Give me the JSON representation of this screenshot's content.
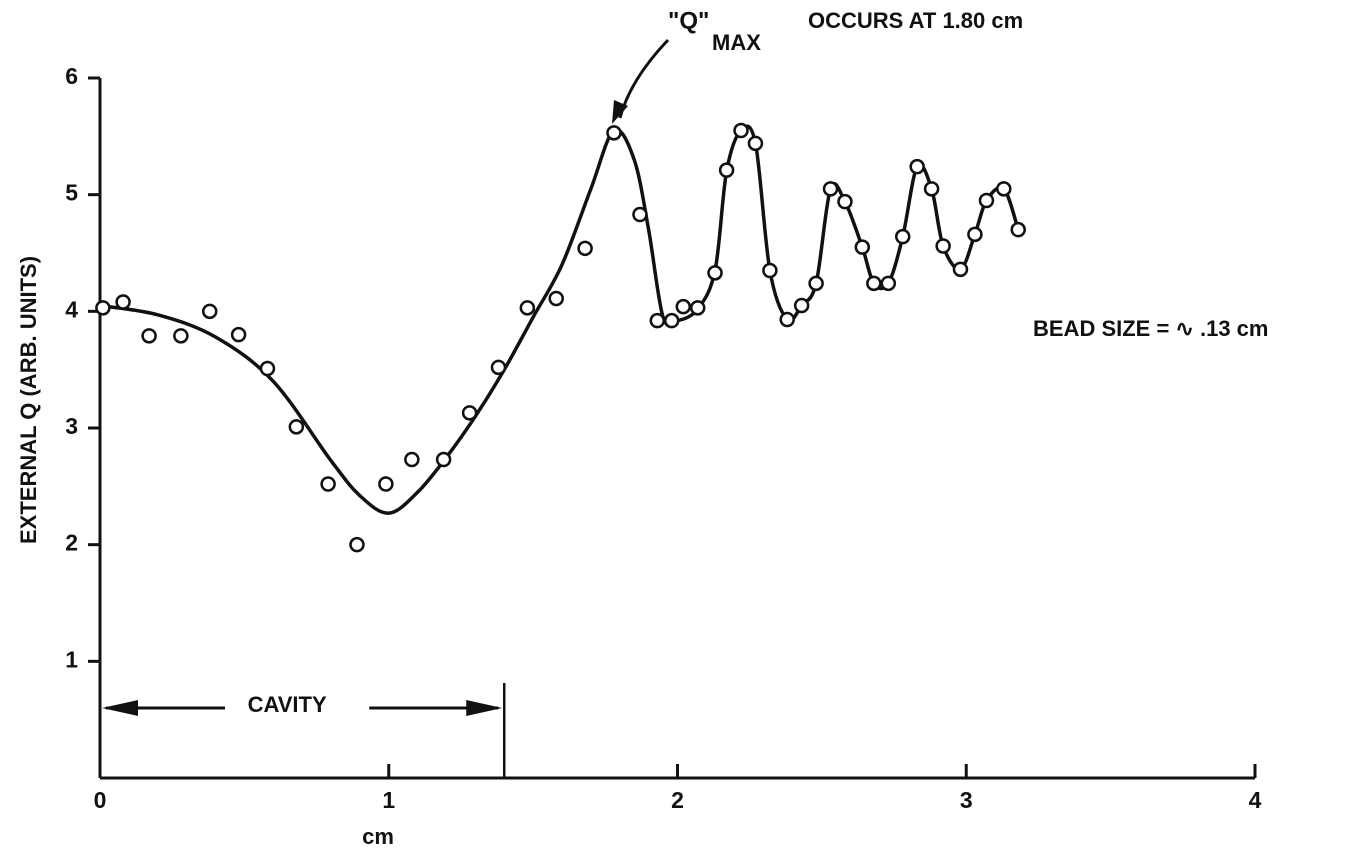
{
  "chart_data": {
    "type": "scatter",
    "xlabel": "cm",
    "ylabel": "EXTERNAL Q (ARB. UNITS)",
    "xlim": [
      0,
      4
    ],
    "ylim": [
      0,
      6
    ],
    "xticks": [
      0,
      1,
      2,
      3,
      4
    ],
    "yticks": [
      1,
      2,
      3,
      4,
      5,
      6
    ],
    "color": "#111111",
    "x": [
      0.01,
      0.08,
      0.17,
      0.28,
      0.38,
      0.48,
      0.58,
      0.68,
      0.79,
      0.89,
      0.99,
      1.08,
      1.19,
      1.28,
      1.38,
      1.48,
      1.58,
      1.68,
      1.78,
      1.87,
      1.93,
      1.98,
      2.02,
      2.07,
      2.13,
      2.17,
      2.22,
      2.27,
      2.32,
      2.38,
      2.43,
      2.48,
      2.53,
      2.58,
      2.64,
      2.68,
      2.73,
      2.78,
      2.83,
      2.88,
      2.92,
      2.98,
      3.03,
      3.07,
      3.13,
      3.18
    ],
    "values": [
      4.03,
      4.08,
      3.79,
      3.79,
      4.0,
      3.8,
      3.51,
      3.01,
      2.52,
      2.0,
      2.52,
      2.73,
      2.73,
      3.13,
      3.52,
      4.03,
      4.11,
      4.54,
      5.53,
      4.83,
      3.92,
      3.92,
      4.04,
      4.03,
      4.33,
      5.21,
      5.55,
      5.44,
      4.35,
      3.93,
      4.05,
      4.24,
      5.05,
      4.94,
      4.55,
      4.24,
      4.24,
      4.64,
      5.24,
      5.05,
      4.56,
      4.36,
      4.66,
      4.95,
      5.05,
      4.7
    ],
    "curve": {
      "x": [
        0,
        0.2,
        0.4,
        0.6,
        0.8,
        0.9,
        1.0,
        1.1,
        1.2,
        1.3,
        1.4,
        1.5,
        1.6,
        1.7,
        1.78,
        1.85,
        1.9,
        1.95,
        2.0,
        2.07,
        2.13,
        2.17,
        2.22,
        2.27,
        2.32,
        2.38,
        2.43,
        2.48,
        2.53,
        2.58,
        2.64,
        2.68,
        2.73,
        2.78,
        2.83,
        2.88,
        2.92,
        2.98,
        3.03,
        3.07,
        3.13,
        3.18
      ],
      "values": [
        4.05,
        3.97,
        3.78,
        3.4,
        2.72,
        2.42,
        2.27,
        2.45,
        2.75,
        3.1,
        3.5,
        3.95,
        4.4,
        5.05,
        5.55,
        5.3,
        4.7,
        3.95,
        3.92,
        4.02,
        4.35,
        5.2,
        5.55,
        5.44,
        4.35,
        3.93,
        4.05,
        4.24,
        5.05,
        4.94,
        4.55,
        4.24,
        4.24,
        4.64,
        5.24,
        5.05,
        4.56,
        4.36,
        4.66,
        4.95,
        5.05,
        4.7
      ]
    },
    "cavity": {
      "label": "CAVITY",
      "range": [
        0,
        1.4
      ],
      "level": 0.6
    },
    "annotation": {
      "q": "\"Q\"",
      "sub": "MAX",
      "rest": "OCCURS AT 1.80 cm"
    },
    "bead_note": "BEAD SIZE = ∿ .13 cm"
  }
}
